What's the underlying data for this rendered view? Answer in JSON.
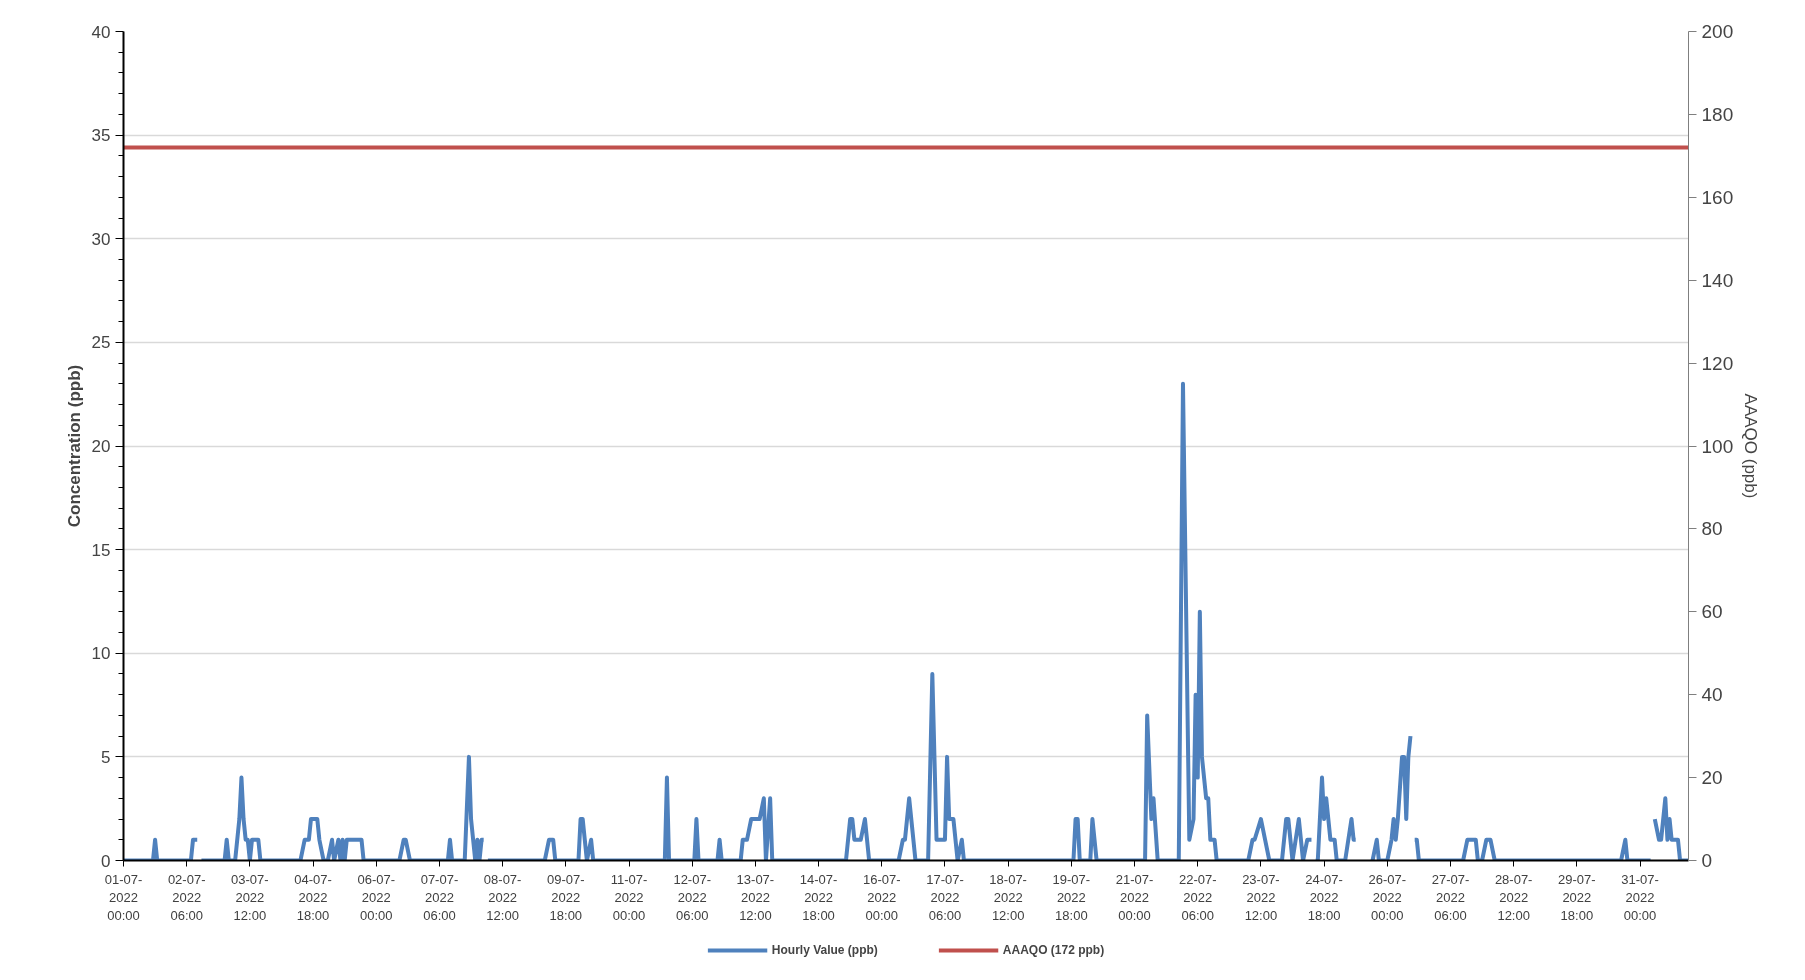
{
  "chart_data": {
    "type": "line",
    "ylabel": "Concentration (ppb)",
    "y2label": "AAAQO (ppb)",
    "xlim": [
      "2022-07-01T00:00",
      "2022-07-31T23:00"
    ],
    "ylim": [
      0,
      40
    ],
    "y2lim": [
      0,
      200
    ],
    "xticks": [
      {
        "value": "2022-07-01T00:00",
        "label": "01-07-\n2022\n00:00"
      },
      {
        "value": "2022-07-02T06:00",
        "label": "02-07-\n2022\n06:00"
      },
      {
        "value": "2022-07-03T12:00",
        "label": "03-07-\n2022\n12:00"
      },
      {
        "value": "2022-07-04T18:00",
        "label": "04-07-\n2022\n18:00"
      },
      {
        "value": "2022-07-06T00:00",
        "label": "06-07-\n2022\n00:00"
      },
      {
        "value": "2022-07-07T06:00",
        "label": "07-07-\n2022\n06:00"
      },
      {
        "value": "2022-07-08T12:00",
        "label": "08-07-\n2022\n12:00"
      },
      {
        "value": "2022-07-09T18:00",
        "label": "09-07-\n2022\n18:00"
      },
      {
        "value": "2022-07-11T00:00",
        "label": "11-07-\n2022\n00:00"
      },
      {
        "value": "2022-07-12T06:00",
        "label": "12-07-\n2022\n06:00"
      },
      {
        "value": "2022-07-13T12:00",
        "label": "13-07-\n2022\n12:00"
      },
      {
        "value": "2022-07-14T18:00",
        "label": "14-07-\n2022\n18:00"
      },
      {
        "value": "2022-07-16T00:00",
        "label": "16-07-\n2022\n00:00"
      },
      {
        "value": "2022-07-17T06:00",
        "label": "17-07-\n2022\n06:00"
      },
      {
        "value": "2022-07-18T12:00",
        "label": "18-07-\n2022\n12:00"
      },
      {
        "value": "2022-07-19T18:00",
        "label": "19-07-\n2022\n18:00"
      },
      {
        "value": "2022-07-21T00:00",
        "label": "21-07-\n2022\n00:00"
      },
      {
        "value": "2022-07-22T06:00",
        "label": "22-07-\n2022\n06:00"
      },
      {
        "value": "2022-07-23T12:00",
        "label": "23-07-\n2022\n12:00"
      },
      {
        "value": "2022-07-24T18:00",
        "label": "24-07-\n2022\n18:00"
      },
      {
        "value": "2022-07-26T00:00",
        "label": "26-07-\n2022\n00:00"
      },
      {
        "value": "2022-07-27T06:00",
        "label": "27-07-\n2022\n06:00"
      },
      {
        "value": "2022-07-28T12:00",
        "label": "28-07-\n2022\n12:00"
      },
      {
        "value": "2022-07-29T18:00",
        "label": "29-07-\n2022\n18:00"
      },
      {
        "value": "2022-07-31T00:00",
        "label": "31-07-\n2022\n00:00"
      }
    ],
    "yticks": [
      0,
      {
        "value": 1,
        "label": null
      },
      {
        "value": 2,
        "label": null
      },
      {
        "value": 3,
        "label": null
      },
      {
        "value": 4,
        "label": null
      },
      5,
      {
        "value": 6,
        "label": null
      },
      {
        "value": 7,
        "label": null
      },
      {
        "value": 8,
        "label": null
      },
      {
        "value": 9,
        "label": null
      },
      10,
      {
        "value": 11,
        "label": null
      },
      {
        "value": 12,
        "label": null
      },
      {
        "value": 13,
        "label": null
      },
      {
        "value": 14,
        "label": null
      },
      15,
      {
        "value": 16,
        "label": null
      },
      {
        "value": 17,
        "label": null
      },
      {
        "value": 18,
        "label": null
      },
      {
        "value": 19,
        "label": null
      },
      20,
      {
        "value": 21,
        "label": null
      },
      {
        "value": 22,
        "label": null
      },
      {
        "value": 23,
        "label": null
      },
      {
        "value": 24,
        "label": null
      },
      25,
      {
        "value": 26,
        "label": null
      },
      {
        "value": 27,
        "label": null
      },
      {
        "value": 28,
        "label": null
      },
      {
        "value": 29,
        "label": null
      },
      30,
      {
        "value": 31,
        "label": null
      },
      {
        "value": 32,
        "label": null
      },
      {
        "value": 33,
        "label": null
      },
      {
        "value": 34,
        "label": null
      },
      35,
      {
        "value": 36,
        "label": null
      },
      {
        "value": 37,
        "label": null
      },
      {
        "value": 38,
        "label": null
      },
      {
        "value": 39,
        "label": null
      },
      40
    ],
    "y2ticks": [
      0,
      20,
      40,
      60,
      80,
      100,
      120,
      140,
      160,
      180,
      200
    ],
    "grid": "y",
    "legend": "bottom",
    "marker": "none",
    "line_style": "solid",
    "series": [
      {
        "name": "Hourly Value (ppb)",
        "color": "#4f81bd",
        "x": [
          "2022-07-01T00:00",
          "2022-07-01T14:00",
          "2022-07-01T15:00",
          "2022-07-01T16:00",
          "2022-07-02T08:00",
          "2022-07-02T09:00",
          "2022-07-02T11:00",
          "2022-07-02T12:00",
          "2022-07-02T13:00",
          "2022-07-03T00:00",
          "2022-07-03T01:00",
          "2022-07-03T02:00",
          "2022-07-03T05:00",
          "2022-07-03T07:00",
          "2022-07-03T08:00",
          "2022-07-03T09:00",
          "2022-07-03T10:00",
          "2022-07-03T11:00",
          "2022-07-03T12:00",
          "2022-07-03T13:00",
          "2022-07-03T16:00",
          "2022-07-03T17:00",
          "2022-07-04T12:00",
          "2022-07-04T14:00",
          "2022-07-04T16:00",
          "2022-07-04T17:00",
          "2022-07-04T20:00",
          "2022-07-04T21:00",
          "2022-07-04T23:00",
          "2022-07-05T01:00",
          "2022-07-05T03:00",
          "2022-07-05T04:00",
          "2022-07-05T06:00",
          "2022-07-05T07:00",
          "2022-07-05T08:00",
          "2022-07-05T09:00",
          "2022-07-05T10:00",
          "2022-07-05T17:00",
          "2022-07-05T18:00",
          "2022-07-06T11:00",
          "2022-07-06T13:00",
          "2022-07-06T14:00",
          "2022-07-06T16:00",
          "2022-07-07T10:00",
          "2022-07-07T11:00",
          "2022-07-07T12:00",
          "2022-07-07T18:00",
          "2022-07-07T20:00",
          "2022-07-07T21:00",
          "2022-07-07T22:00",
          "2022-07-07T23:00",
          "2022-07-08T00:00",
          "2022-07-08T01:00",
          "2022-07-08T02:00",
          "2022-07-08T03:00",
          "2022-07-08T04:00",
          "2022-07-08T05:00",
          "2022-07-09T08:00",
          "2022-07-09T10:00",
          "2022-07-09T12:00",
          "2022-07-09T13:00",
          "2022-07-10T00:00",
          "2022-07-10T01:00",
          "2022-07-10T02:00",
          "2022-07-10T03:00",
          "2022-07-10T04:00",
          "2022-07-10T06:00",
          "2022-07-10T07:00",
          "2022-07-11T17:00",
          "2022-07-11T18:00",
          "2022-07-11T19:00",
          "2022-07-12T07:00",
          "2022-07-12T08:00",
          "2022-07-12T09:00",
          "2022-07-12T18:00",
          "2022-07-12T19:00",
          "2022-07-12T20:00",
          "2022-07-13T05:00",
          "2022-07-13T06:00",
          "2022-07-13T08:00",
          "2022-07-13T10:00",
          "2022-07-13T14:00",
          "2022-07-13T16:00",
          "2022-07-13T17:00",
          "2022-07-13T19:00",
          "2022-07-13T20:00",
          "2022-07-15T07:00",
          "2022-07-15T09:00",
          "2022-07-15T10:00",
          "2022-07-15T11:00",
          "2022-07-15T14:00",
          "2022-07-15T16:00",
          "2022-07-15T18:00",
          "2022-07-16T08:00",
          "2022-07-16T10:00",
          "2022-07-16T11:00",
          "2022-07-16T13:00",
          "2022-07-16T16:00",
          "2022-07-16T22:00",
          "2022-07-17T00:00",
          "2022-07-17T02:00",
          "2022-07-17T06:00",
          "2022-07-17T07:00",
          "2022-07-17T08:00",
          "2022-07-17T10:00",
          "2022-07-17T12:00",
          "2022-07-17T14:00",
          "2022-07-17T15:00",
          "2022-07-19T19:00",
          "2022-07-19T20:00",
          "2022-07-19T21:00",
          "2022-07-19T22:00",
          "2022-07-20T03:00",
          "2022-07-20T04:00",
          "2022-07-20T06:00",
          "2022-07-21T05:00",
          "2022-07-21T06:00",
          "2022-07-21T08:00",
          "2022-07-21T09:00",
          "2022-07-21T11:00",
          "2022-07-21T21:00",
          "2022-07-21T23:00",
          "2022-07-22T02:00",
          "2022-07-22T04:00",
          "2022-07-22T05:00",
          "2022-07-22T06:00",
          "2022-07-22T07:00",
          "2022-07-22T08:00",
          "2022-07-22T10:00",
          "2022-07-22T11:00",
          "2022-07-22T12:00",
          "2022-07-22T14:00",
          "2022-07-22T15:00",
          "2022-07-23T06:00",
          "2022-07-23T08:00",
          "2022-07-23T09:00",
          "2022-07-23T12:00",
          "2022-07-23T14:00",
          "2022-07-23T16:00",
          "2022-07-23T22:00",
          "2022-07-24T00:00",
          "2022-07-24T01:00",
          "2022-07-24T03:00",
          "2022-07-24T06:00",
          "2022-07-24T08:00",
          "2022-07-24T10:00",
          "2022-07-24T12:00",
          "2022-07-24T13:00",
          "2022-07-24T14:00",
          "2022-07-24T15:00",
          "2022-07-24T17:00",
          "2022-07-24T18:00",
          "2022-07-24T19:00",
          "2022-07-24T21:00",
          "2022-07-24T23:00",
          "2022-07-25T00:00",
          "2022-07-25T04:00",
          "2022-07-25T07:00",
          "2022-07-25T08:00",
          "2022-07-25T09:00",
          "2022-07-25T10:00",
          "2022-07-25T17:00",
          "2022-07-25T19:00",
          "2022-07-25T20:00",
          "2022-07-26T00:00",
          "2022-07-26T02:00",
          "2022-07-26T03:00",
          "2022-07-26T04:00",
          "2022-07-26T05:00",
          "2022-07-26T07:00",
          "2022-07-26T08:00",
          "2022-07-26T09:00",
          "2022-07-26T10:00",
          "2022-07-26T11:00",
          "2022-07-26T12:00",
          "2022-07-26T13:00",
          "2022-07-26T14:00",
          "2022-07-26T15:00",
          "2022-07-27T12:00",
          "2022-07-27T14:00",
          "2022-07-27T18:00",
          "2022-07-27T19:00",
          "2022-07-27T21:00",
          "2022-07-27T23:00",
          "2022-07-28T01:00",
          "2022-07-28T03:00",
          "2022-07-30T15:00",
          "2022-07-30T17:00",
          "2022-07-30T18:00",
          "2022-07-31T05:00",
          "2022-07-31T06:00",
          "2022-07-31T07:00",
          "2022-07-31T09:00",
          "2022-07-31T10:00",
          "2022-07-31T12:00",
          "2022-07-31T13:00",
          "2022-07-31T14:00",
          "2022-07-31T15:00",
          "2022-07-31T18:00",
          "2022-07-31T19:00",
          "2022-07-31T23:00"
        ],
        "values": [
          0,
          0,
          1,
          0,
          0,
          1,
          1,
          null,
          0,
          0,
          1,
          0,
          0,
          2,
          4,
          2,
          1,
          1,
          0,
          1,
          1,
          0,
          0,
          1,
          1,
          2,
          2,
          1,
          0,
          0,
          1,
          0,
          1,
          0,
          1,
          0,
          1,
          1,
          0,
          0,
          1,
          1,
          0,
          0,
          1,
          0,
          0,
          5,
          2,
          1,
          0,
          1,
          0,
          1,
          1,
          null,
          0,
          0,
          1,
          1,
          0,
          0,
          2,
          2,
          1,
          0,
          1,
          0,
          0,
          4,
          0,
          0,
          2,
          0,
          0,
          1,
          0,
          0,
          1,
          1,
          2,
          2,
          3,
          0,
          3,
          0,
          0,
          2,
          2,
          1,
          1,
          2,
          0,
          0,
          1,
          1,
          3,
          0,
          0,
          9,
          1,
          1,
          5,
          2,
          2,
          0,
          1,
          0,
          0,
          2,
          2,
          0,
          0,
          2,
          0,
          0,
          7,
          2,
          3,
          0,
          0,
          23,
          1,
          2,
          8,
          4,
          12,
          5,
          3,
          3,
          1,
          1,
          0,
          0,
          1,
          1,
          2,
          1,
          0,
          0,
          2,
          2,
          0,
          2,
          0,
          1,
          1,
          null,
          0,
          0,
          4,
          2,
          3,
          1,
          1,
          0,
          0,
          2,
          1,
          1,
          null,
          0,
          1,
          0,
          0,
          1,
          2,
          1,
          2,
          5,
          5,
          2,
          5,
          6,
          null,
          1,
          1,
          0,
          0,
          1,
          1,
          0,
          0,
          1,
          1,
          0,
          0,
          1,
          0,
          0,
          null,
          2,
          1,
          1,
          3,
          1,
          2,
          1,
          1,
          0,
          0
        ]
      },
      {
        "name": "AAAQO (172 ppb)",
        "color": "#c0504d",
        "axis": "y2",
        "x": [
          "2022-07-01T00:00",
          "2022-07-31T23:00"
        ],
        "values": [
          172,
          172
        ]
      }
    ]
  }
}
